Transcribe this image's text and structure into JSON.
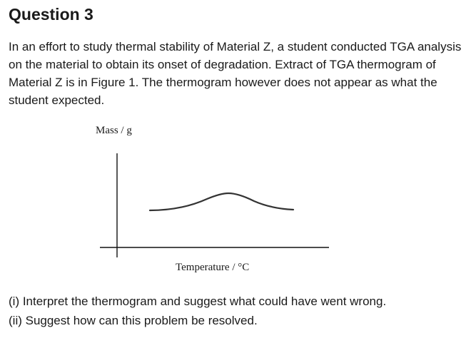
{
  "question": {
    "title": "Question 3",
    "intro": "In an effort to study thermal stability of Material Z, a student conducted TGA analysis on the material to obtain its onset of degradation. Extract of TGA thermogram of Material Z is in Figure 1. The thermogram however does not appear as what the student expected.",
    "parts": [
      "(i) Interpret the thermogram and suggest what could have went wrong.",
      "(ii) Suggest how can this problem be resolved."
    ]
  },
  "figure": {
    "y_axis_label": "Mass / g",
    "x_axis_label": "Temperature / °C",
    "curve_color": "#333333",
    "axis_color": "#111111"
  }
}
